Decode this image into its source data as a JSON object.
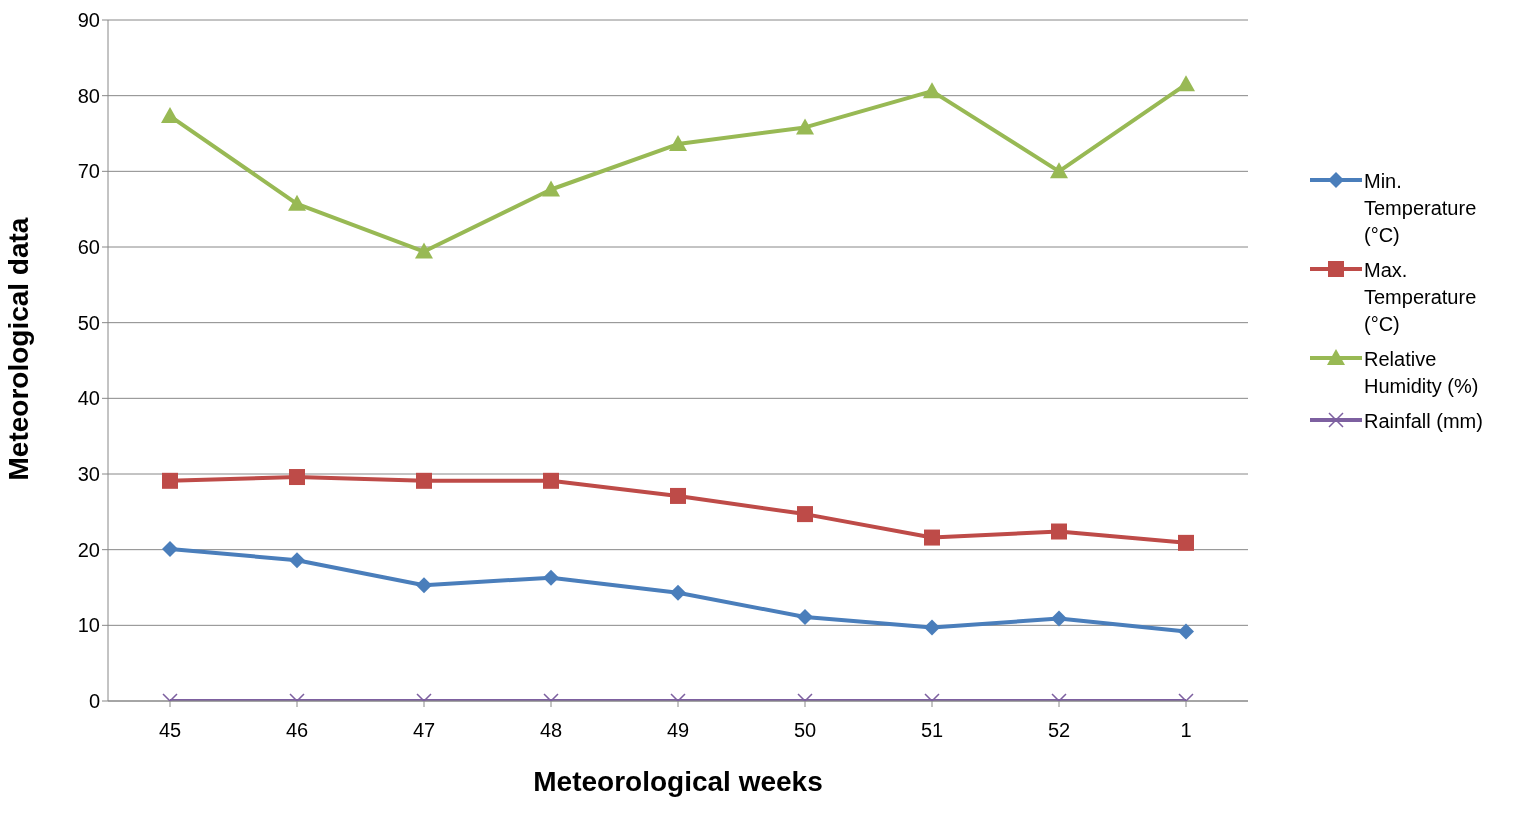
{
  "chart_data": {
    "type": "line",
    "xlabel": "Meteorological weeks",
    "ylabel": "Meteorological data",
    "categories": [
      "45",
      "46",
      "47",
      "48",
      "49",
      "50",
      "51",
      "52",
      "1"
    ],
    "series": [
      {
        "name": "Min. Temperature (°C)",
        "color": "#4a7ebb",
        "marker": "diamond",
        "values": [
          20.1,
          18.6,
          15.3,
          16.3,
          14.3,
          11.1,
          9.7,
          10.9,
          9.2
        ]
      },
      {
        "name": "Max. Temperature (°C)",
        "color": "#be4b48",
        "marker": "square",
        "values": [
          29.1,
          29.6,
          29.1,
          29.1,
          27.1,
          24.7,
          21.6,
          22.4,
          20.9
        ]
      },
      {
        "name": "Relative Humidity (%)",
        "color": "#98b954",
        "marker": "triangle",
        "values": [
          77.3,
          65.7,
          59.4,
          67.6,
          73.6,
          75.8,
          80.6,
          70.0,
          81.5
        ]
      },
      {
        "name": "Rainfall (mm)",
        "color": "#7d60a0",
        "marker": "cross",
        "values": [
          0,
          0,
          0,
          0,
          0,
          0,
          0,
          0,
          0
        ]
      }
    ],
    "ylim": [
      0,
      90
    ],
    "yticks": [
      0,
      10,
      20,
      30,
      40,
      50,
      60,
      70,
      80,
      90
    ],
    "grid": "y",
    "legend": "right"
  }
}
